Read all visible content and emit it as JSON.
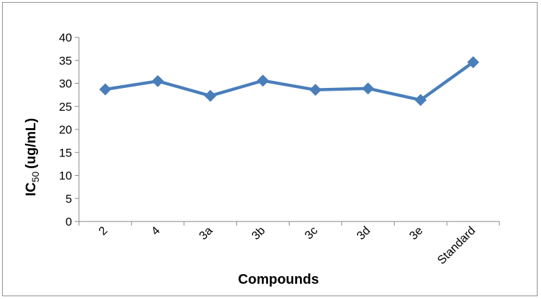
{
  "chart_data": {
    "type": "line",
    "title": "",
    "xlabel": "Compounds",
    "ylabel": {
      "main": "IC",
      "sub": "50",
      "unit": "(ug/mL)"
    },
    "categories": [
      "2",
      "4",
      "3a",
      "3b",
      "3c",
      "3d",
      "3e",
      "Standard"
    ],
    "series": [
      {
        "values": [
          28.7,
          30.5,
          27.3,
          30.6,
          28.6,
          28.9,
          26.4,
          34.6
        ],
        "color": "#4a7ebb",
        "marker": "diamond"
      }
    ],
    "ylim": [
      0,
      40
    ],
    "yticks": [
      0,
      5,
      10,
      15,
      20,
      25,
      30,
      35,
      40
    ],
    "grid": false,
    "legend": "none"
  }
}
